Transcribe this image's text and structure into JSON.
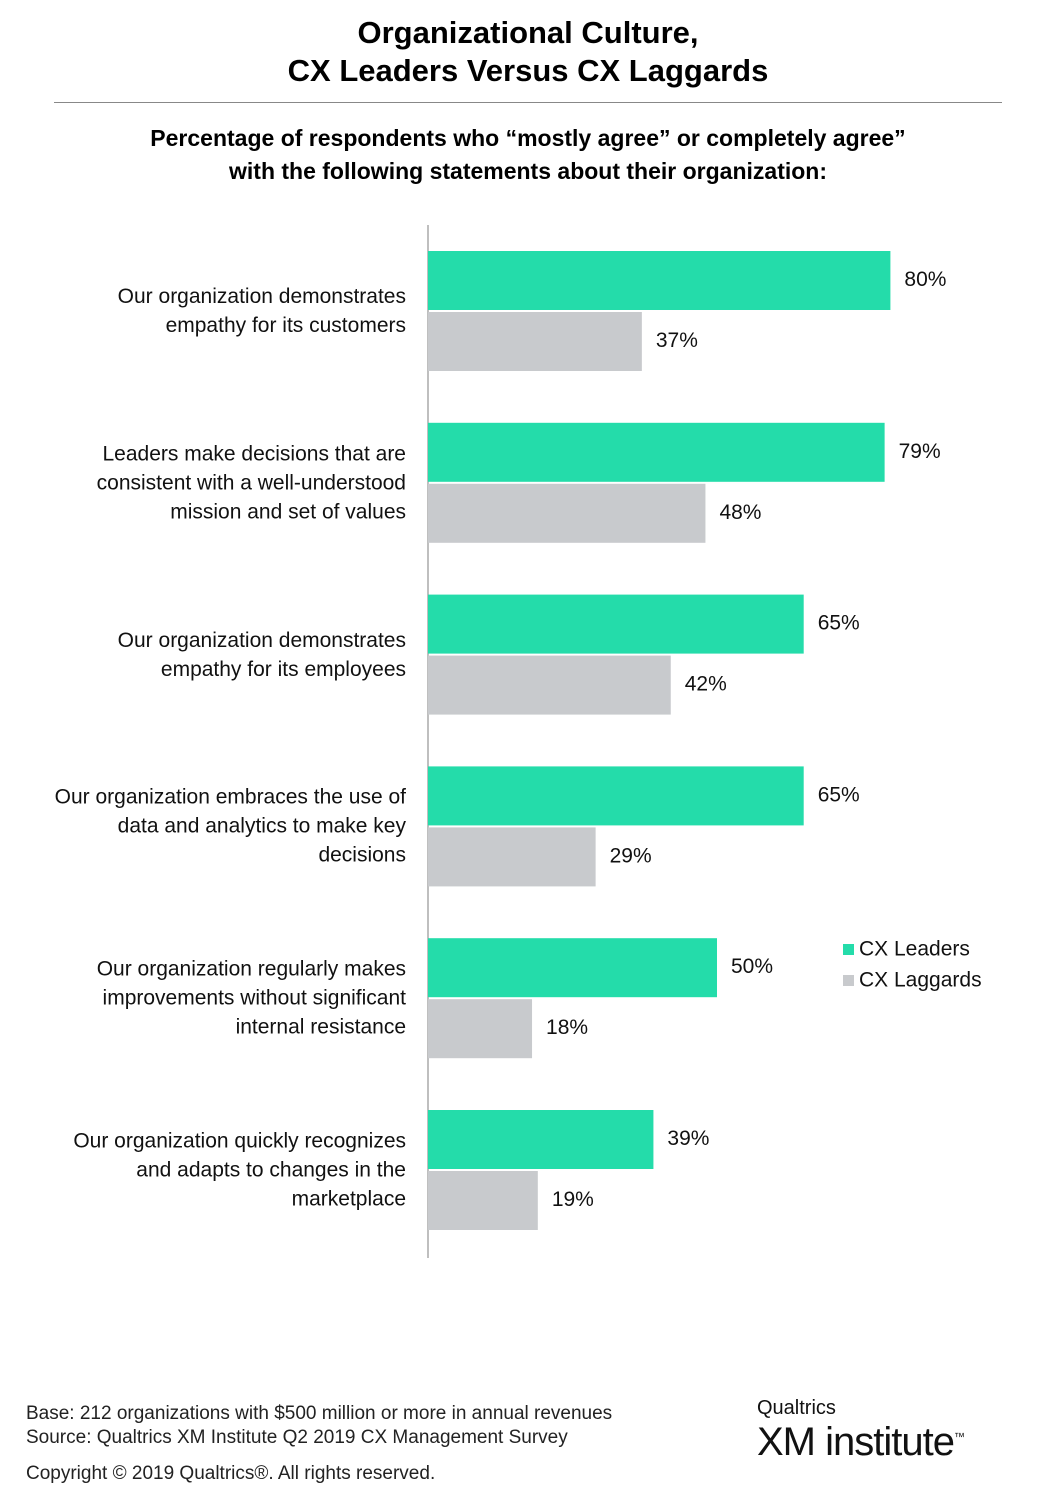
{
  "chart_data": {
    "type": "bar",
    "orientation": "horizontal",
    "title": "Organizational Culture,\nCX Leaders Versus CX Laggards",
    "subtitle": "Percentage of respondents who “mostly agree” or completely agree”\nwith the following statements about their organization:",
    "categories": [
      "Our organization demonstrates empathy for its customers",
      "Leaders make decisions that are consistent with a well-understood mission and set of values",
      "Our organization demonstrates empathy for its employees",
      "Our organization embraces the use of data and analytics to make key decisions",
      "Our organization regularly makes improvements without significant internal resistance",
      "Our organization quickly recognizes and adapts to changes in the marketplace"
    ],
    "series": [
      {
        "name": "CX Leaders",
        "color": "#24dcaa",
        "values": [
          80,
          79,
          65,
          65,
          50,
          39
        ],
        "value_labels": [
          "80%",
          "79%",
          "65%",
          "65%",
          "50%",
          "39%"
        ]
      },
      {
        "name": "CX Laggards",
        "color": "#c8cacd",
        "values": [
          37,
          48,
          42,
          29,
          18,
          19
        ],
        "value_labels": [
          "37%",
          "48%",
          "42%",
          "29%",
          "18%",
          "19%"
        ]
      }
    ],
    "xlim": [
      0,
      100
    ],
    "footnotes": [
      "Base: 212 organizations with $500 million or more in annual revenues",
      "Source: Qualtrics XM Institute Q2 2019 CX Management Survey"
    ],
    "copyright": "Copyright © 2019 Qualtrics®.  All rights reserved.",
    "logo": {
      "brand": "Qualtrics",
      "name": "XM institute",
      "mark": "™"
    }
  }
}
